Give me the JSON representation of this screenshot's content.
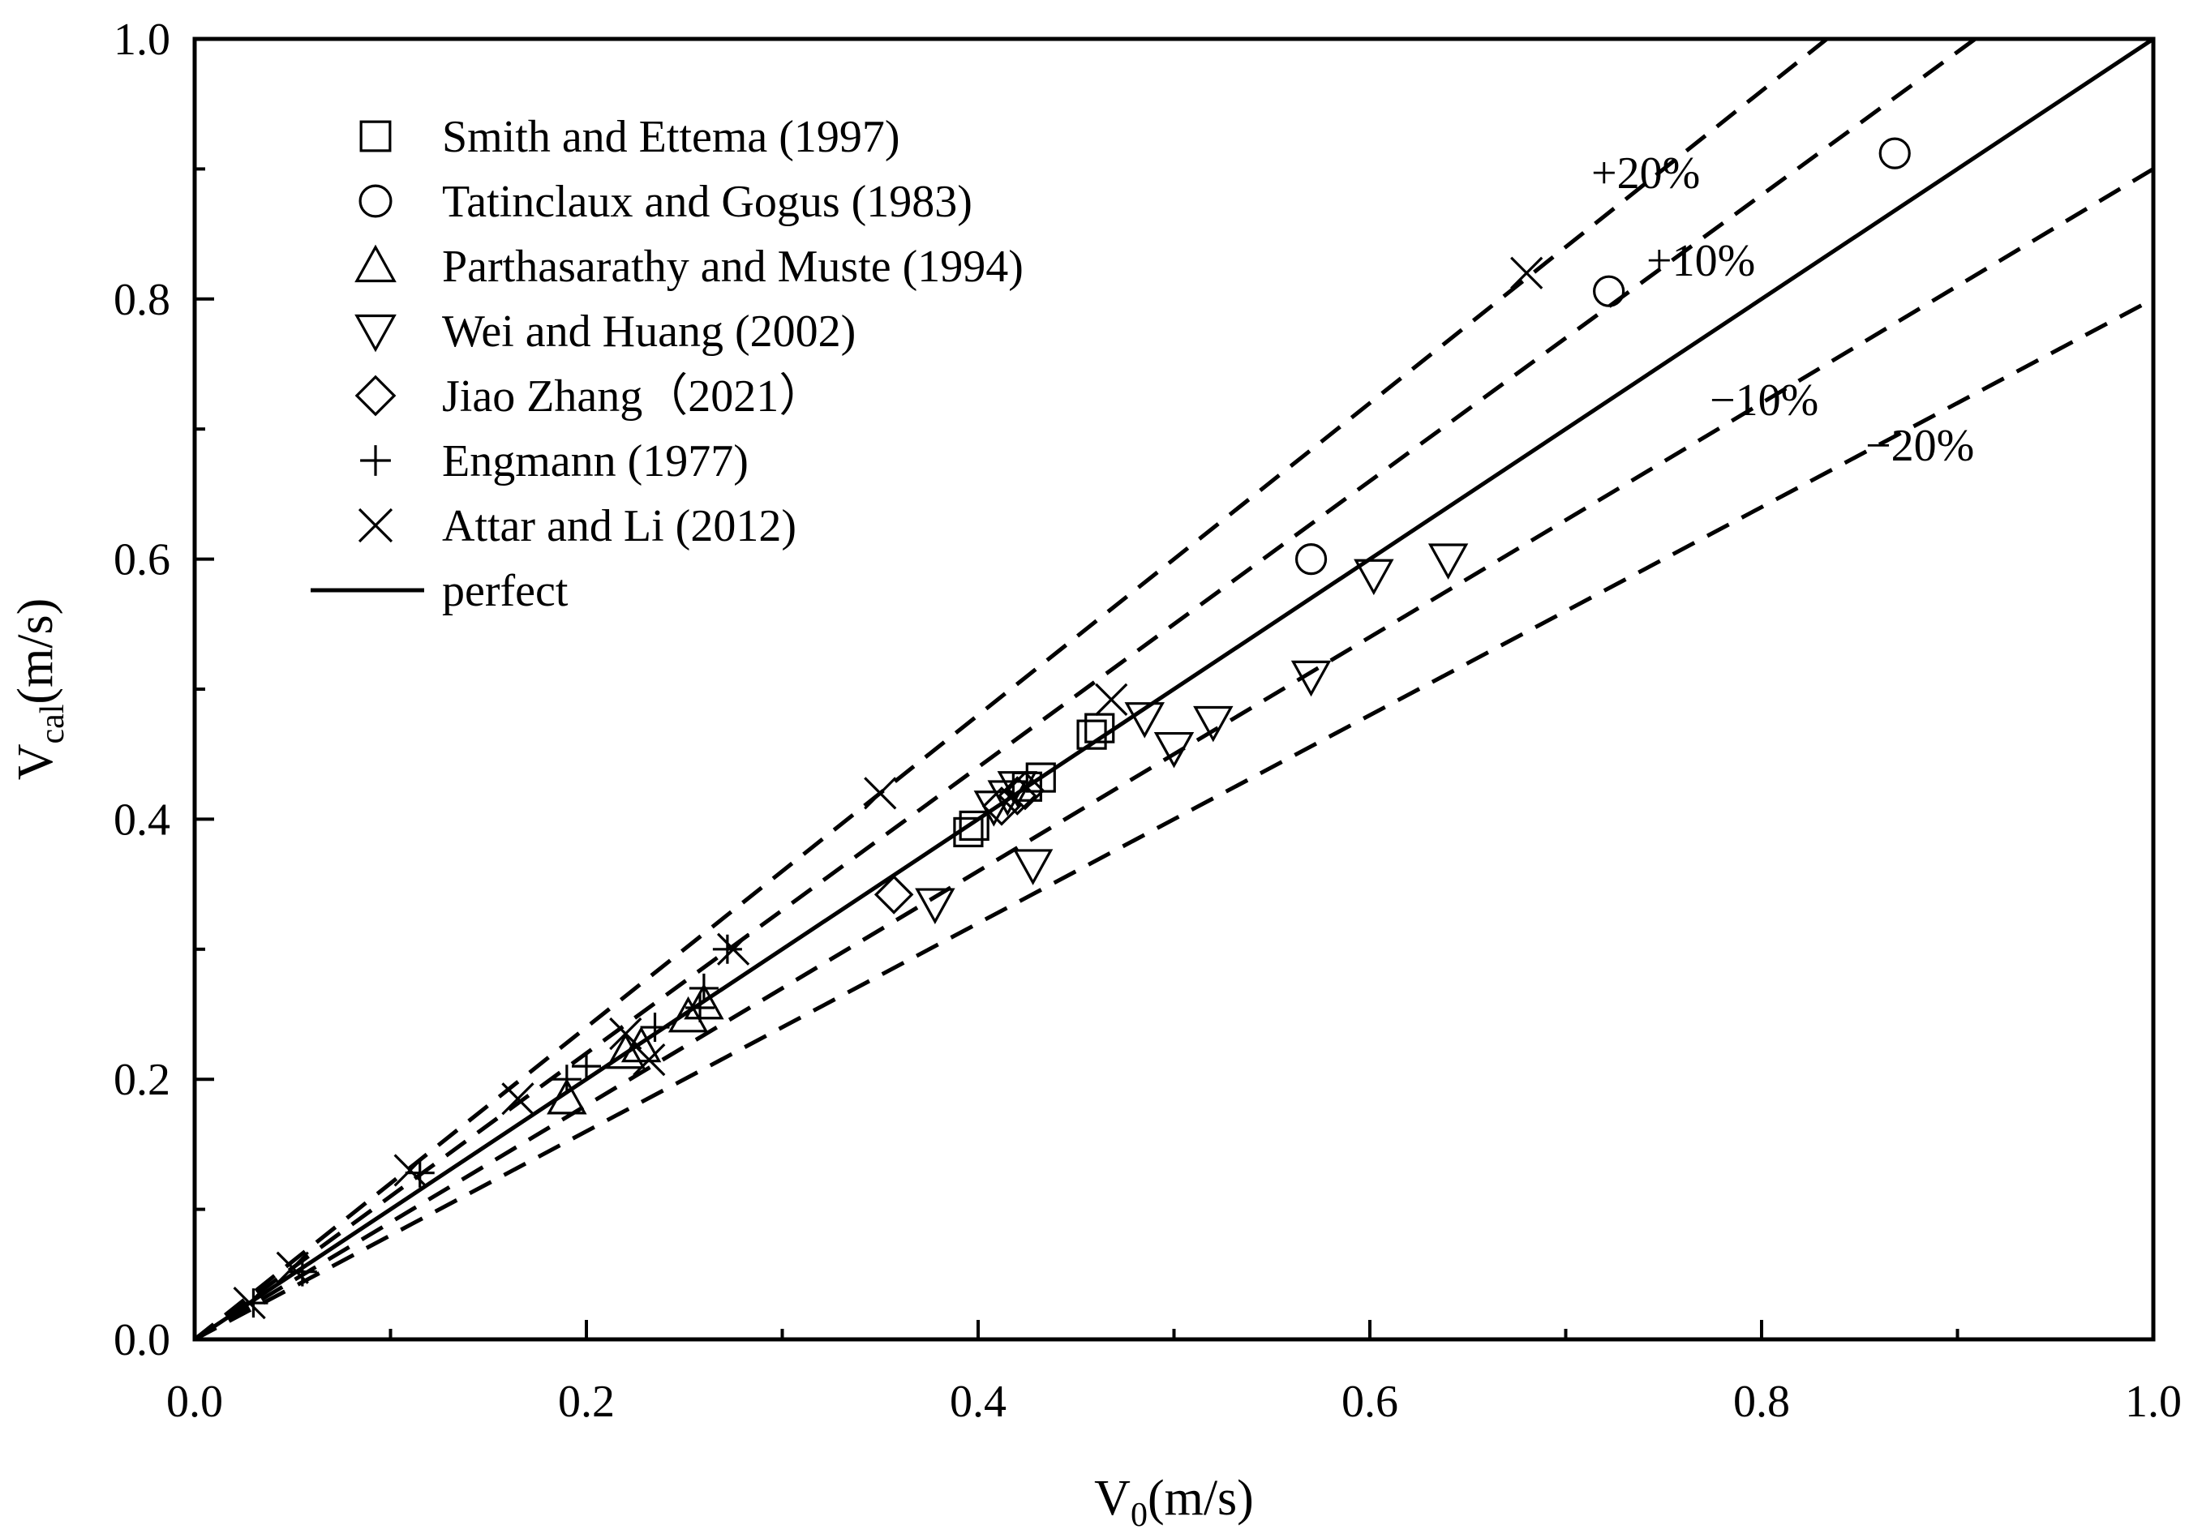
{
  "chart_data": {
    "type": "scatter",
    "xlabel": "V",
    "xlabel_sub": "0",
    "xlabel_unit": "(m/s)",
    "ylabel": "V",
    "ylabel_sub": "cal",
    "ylabel_unit": "(m/s)",
    "xlim": [
      0.0,
      1.0
    ],
    "ylim": [
      0.0,
      1.0
    ],
    "x_ticks": [
      "0.0",
      "0.2",
      "0.4",
      "0.6",
      "0.8",
      "1.0"
    ],
    "y_ticks": [
      "0.0",
      "0.2",
      "0.4",
      "0.6",
      "0.8",
      "1.0"
    ],
    "x_tick_values": [
      0.0,
      0.2,
      0.4,
      0.6,
      0.8,
      1.0
    ],
    "y_tick_values": [
      0.0,
      0.2,
      0.4,
      0.6,
      0.8,
      1.0
    ],
    "grid": false,
    "legend_position": "top-left",
    "series": [
      {
        "name": "Smith and Ettema (1997)",
        "marker": "square",
        "points": [
          [
            0.395,
            0.39
          ],
          [
            0.398,
            0.395
          ],
          [
            0.425,
            0.425
          ],
          [
            0.432,
            0.432
          ],
          [
            0.458,
            0.465
          ],
          [
            0.462,
            0.47
          ]
        ]
      },
      {
        "name": "Tatinclaux and Gogus (1983)",
        "marker": "circle",
        "points": [
          [
            0.57,
            0.6
          ],
          [
            0.722,
            0.806
          ],
          [
            0.868,
            0.912
          ]
        ]
      },
      {
        "name": "Parthasarathy and Muste (1994)",
        "marker": "triangle-up",
        "points": [
          [
            0.19,
            0.185
          ],
          [
            0.22,
            0.22
          ],
          [
            0.228,
            0.225
          ],
          [
            0.252,
            0.248
          ],
          [
            0.26,
            0.258
          ]
        ]
      },
      {
        "name": "Wei and Huang (2002)",
        "marker": "triangle-down",
        "points": [
          [
            0.378,
            0.335
          ],
          [
            0.408,
            0.41
          ],
          [
            0.415,
            0.418
          ],
          [
            0.42,
            0.425
          ],
          [
            0.428,
            0.365
          ],
          [
            0.485,
            0.478
          ],
          [
            0.5,
            0.455
          ],
          [
            0.52,
            0.475
          ],
          [
            0.57,
            0.51
          ],
          [
            0.602,
            0.588
          ],
          [
            0.64,
            0.6
          ]
        ]
      },
      {
        "name": "Jiao Zhang（2021）",
        "marker": "diamond",
        "points": [
          [
            0.357,
            0.342
          ],
          [
            0.412,
            0.41
          ],
          [
            0.42,
            0.418
          ],
          [
            0.424,
            0.422
          ]
        ]
      },
      {
        "name": "Engmann (1977)",
        "marker": "plus",
        "points": [
          [
            0.03,
            0.028
          ],
          [
            0.055,
            0.052
          ],
          [
            0.115,
            0.128
          ],
          [
            0.19,
            0.2
          ],
          [
            0.2,
            0.21
          ],
          [
            0.235,
            0.24
          ],
          [
            0.26,
            0.27
          ],
          [
            0.272,
            0.3
          ],
          [
            0.258,
            0.255
          ]
        ]
      },
      {
        "name": "Attar and Li (2012)",
        "marker": "cross",
        "points": [
          [
            0.028,
            0.028
          ],
          [
            0.05,
            0.055
          ],
          [
            0.11,
            0.13
          ],
          [
            0.165,
            0.185
          ],
          [
            0.22,
            0.235
          ],
          [
            0.232,
            0.215
          ],
          [
            0.275,
            0.3
          ],
          [
            0.35,
            0.42
          ],
          [
            0.468,
            0.492
          ],
          [
            0.68,
            0.82
          ]
        ]
      }
    ],
    "reference_lines": [
      {
        "name": "perfect",
        "style": "solid",
        "slope": 1.0
      },
      {
        "label": "+20%",
        "style": "dashed",
        "slope": 1.2
      },
      {
        "label": "+10%",
        "style": "dashed",
        "slope": 1.1
      },
      {
        "label": "−10%",
        "style": "dashed",
        "slope": 0.9
      },
      {
        "label": "−20%",
        "style": "dashed",
        "slope": 0.8
      }
    ]
  }
}
